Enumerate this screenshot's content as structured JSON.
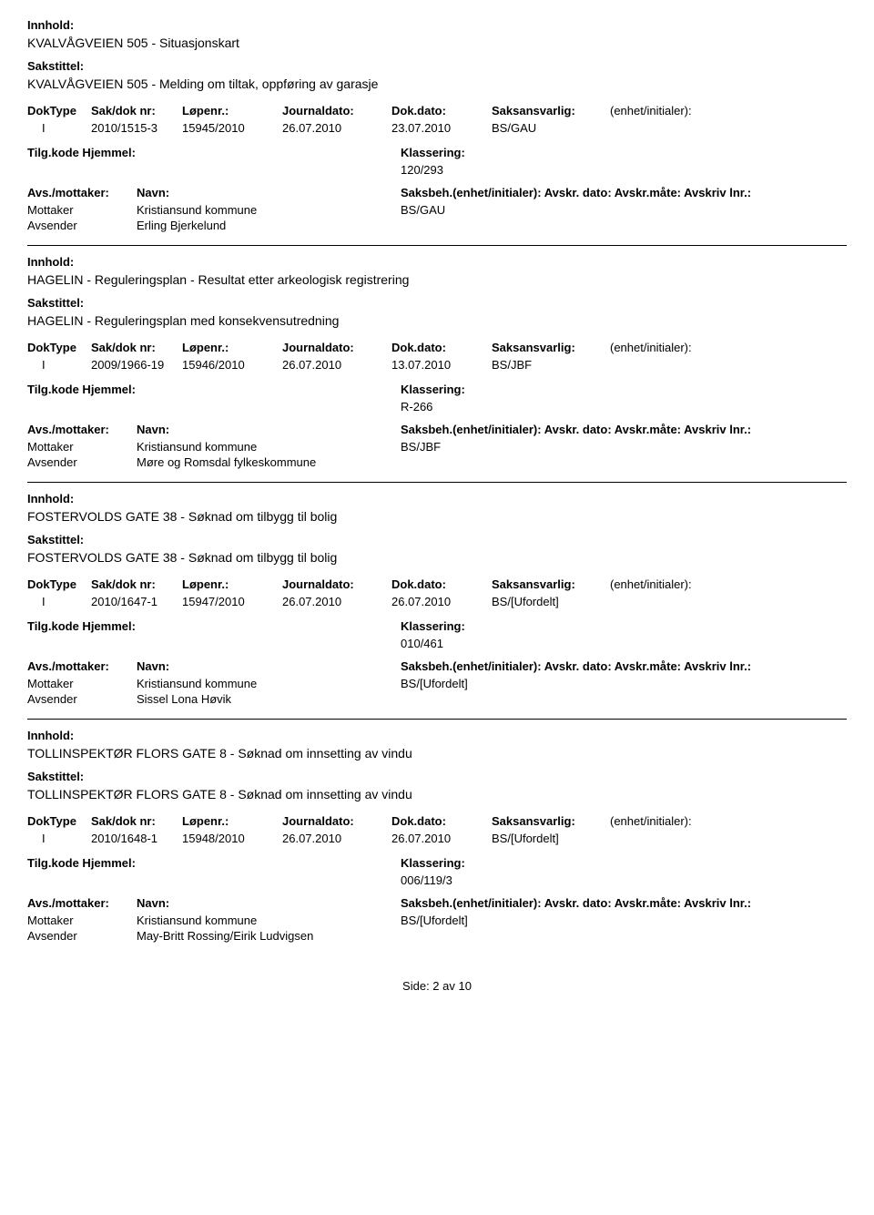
{
  "labels": {
    "innhold": "Innhold:",
    "sakstittel": "Sakstittel:",
    "dokType": "DokType",
    "sakDok": "Sak/dok nr:",
    "lopenr": "Løpenr.:",
    "journaldato": "Journaldato:",
    "dokdato": "Dok.dato:",
    "saksansvarlig": "Saksansvarlig:",
    "enhet": "(enhet/initialer):",
    "tilgHjemmel": "Tilg.kode Hjemmel:",
    "klassering": "Klassering:",
    "avsMottaker": "Avs./mottaker:",
    "navn": "Navn:",
    "saksbehEtc": "Saksbeh.(enhet/initialer): Avskr. dato:  Avskr.måte: Avskriv lnr.:",
    "mottaker": "Mottaker",
    "avsender": "Avsender"
  },
  "records": [
    {
      "innhold": "KVALVÅGVEIEN 505 - Situasjonskart",
      "sakstittel": "KVALVÅGVEIEN 505 - Melding om tiltak, oppføring av garasje",
      "dokType": "I",
      "sakDok": "2010/1515-3",
      "lopenr": "15945/2010",
      "journaldato": "26.07.2010",
      "dokdato": "23.07.2010",
      "saksansvarlig": "BS/GAU",
      "klassering": "120/293",
      "mottakerName": "Kristiansund kommune",
      "mottakerRef": "BS/GAU",
      "avsenderName": "Erling Bjerkelund"
    },
    {
      "innhold": "HAGELIN - Reguleringsplan - Resultat etter arkeologisk registrering",
      "sakstittel": "HAGELIN - Reguleringsplan med konsekvensutredning",
      "dokType": "I",
      "sakDok": "2009/1966-19",
      "lopenr": "15946/2010",
      "journaldato": "26.07.2010",
      "dokdato": "13.07.2010",
      "saksansvarlig": "BS/JBF",
      "klassering": "R-266",
      "mottakerName": "Kristiansund kommune",
      "mottakerRef": "BS/JBF",
      "avsenderName": "Møre og Romsdal fylkeskommune"
    },
    {
      "innhold": "FOSTERVOLDS GATE 38 - Søknad om tilbygg til bolig",
      "sakstittel": "FOSTERVOLDS GATE 38 - Søknad om tilbygg til bolig",
      "dokType": "I",
      "sakDok": "2010/1647-1",
      "lopenr": "15947/2010",
      "journaldato": "26.07.2010",
      "dokdato": "26.07.2010",
      "saksansvarlig": "BS/[Ufordelt]",
      "klassering": "010/461",
      "mottakerName": "Kristiansund kommune",
      "mottakerRef": "BS/[Ufordelt]",
      "avsenderName": "Sissel Lona Høvik"
    },
    {
      "innhold": "TOLLINSPEKTØR FLORS GATE 8 - Søknad om innsetting av vindu",
      "sakstittel": "TOLLINSPEKTØR FLORS GATE 8 - Søknad om innsetting av vindu",
      "dokType": "I",
      "sakDok": "2010/1648-1",
      "lopenr": "15948/2010",
      "journaldato": "26.07.2010",
      "dokdato": "26.07.2010",
      "saksansvarlig": "BS/[Ufordelt]",
      "klassering": "006/119/3",
      "mottakerName": "Kristiansund kommune",
      "mottakerRef": "BS/[Ufordelt]",
      "avsenderName": "May-Britt Rossing/Eirik Ludvigsen"
    }
  ],
  "footer": "Side: 2 av 10"
}
